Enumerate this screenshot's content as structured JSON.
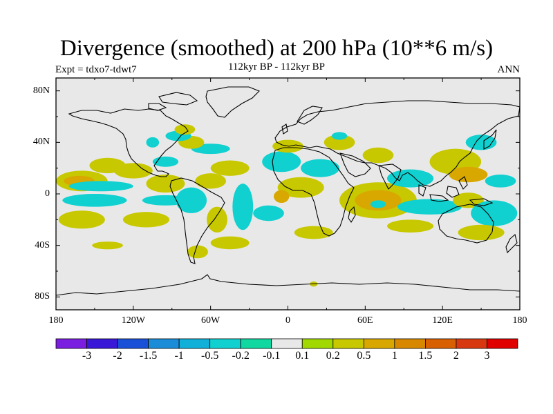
{
  "title": "Divergence (smoothed) at 200 hPa (10**6 m/s)",
  "left_subtitle": "Expt = tdxo7-tdwt7",
  "center_subtitle": "112kyr BP - 112kyr BP",
  "right_subtitle": "ANN",
  "chart_data": {
    "type": "heatmap",
    "projection": "cylindrical-equidistant",
    "lon_range": [
      -180,
      180
    ],
    "lat_range": [
      -90,
      90
    ],
    "x_tick_labels": [
      {
        "lon": -180,
        "label": "180"
      },
      {
        "lon": -120,
        "label": "120W"
      },
      {
        "lon": -60,
        "label": "60W"
      },
      {
        "lon": 0,
        "label": "0"
      },
      {
        "lon": 60,
        "label": "60E"
      },
      {
        "lon": 120,
        "label": "120E"
      },
      {
        "lon": 180,
        "label": "180"
      }
    ],
    "y_tick_labels": [
      {
        "lat": 80,
        "label": "80N"
      },
      {
        "lat": 40,
        "label": "40N"
      },
      {
        "lat": 0,
        "label": "0"
      },
      {
        "lat": -40,
        "label": "40S"
      },
      {
        "lat": -80,
        "label": "80S"
      }
    ],
    "background_color": "#e8e8e8",
    "colorbar": {
      "colors": [
        "#7a1fe0",
        "#3a18d8",
        "#1a50d8",
        "#1a8cd8",
        "#10b0d8",
        "#10d0d0",
        "#10d8a0",
        "#e8e8e8",
        "#a0d800",
        "#c8c800",
        "#d8a800",
        "#d88800",
        "#d86000",
        "#d83810",
        "#e00000"
      ],
      "labels": [
        "-3",
        "-2",
        "-1.5",
        "-1",
        "-0.5",
        "-0.2",
        "-0.1",
        "0.1",
        "0.2",
        "0.5",
        "1",
        "1.5",
        "2",
        "3"
      ]
    },
    "contour_regions": [
      {
        "level": 0.2,
        "lon": -160,
        "lat": 10,
        "rx": 20,
        "ry": 8
      },
      {
        "level": 0.5,
        "lon": -162,
        "lat": 10,
        "rx": 12,
        "ry": 4
      },
      {
        "level": 0.2,
        "lon": -140,
        "lat": 22,
        "rx": 14,
        "ry": 6
      },
      {
        "level": -0.2,
        "lon": -145,
        "lat": 6,
        "rx": 25,
        "ry": 4
      },
      {
        "level": -0.2,
        "lon": -150,
        "lat": -5,
        "rx": 25,
        "ry": 5
      },
      {
        "level": 0.2,
        "lon": -160,
        "lat": -20,
        "rx": 18,
        "ry": 7
      },
      {
        "level": 0.2,
        "lon": -120,
        "lat": 18,
        "rx": 15,
        "ry": 6
      },
      {
        "level": 0.2,
        "lon": -95,
        "lat": 8,
        "rx": 15,
        "ry": 7
      },
      {
        "level": -0.2,
        "lon": -95,
        "lat": 25,
        "rx": 10,
        "ry": 4
      },
      {
        "level": -0.2,
        "lon": -95,
        "lat": -5,
        "rx": 18,
        "ry": 4
      },
      {
        "level": 0.2,
        "lon": -110,
        "lat": -20,
        "rx": 18,
        "ry": 6
      },
      {
        "level": -0.2,
        "lon": -75,
        "lat": -5,
        "rx": 12,
        "ry": 10
      },
      {
        "level": 0.2,
        "lon": -60,
        "lat": 10,
        "rx": 12,
        "ry": 6
      },
      {
        "level": 0.2,
        "lon": -45,
        "lat": 20,
        "rx": 15,
        "ry": 6
      },
      {
        "level": -0.2,
        "lon": -60,
        "lat": 35,
        "rx": 15,
        "ry": 4
      },
      {
        "level": 0.2,
        "lon": -75,
        "lat": 40,
        "rx": 10,
        "ry": 5
      },
      {
        "level": -0.2,
        "lon": -35,
        "lat": -10,
        "rx": 8,
        "ry": 18
      },
      {
        "level": 0.2,
        "lon": -55,
        "lat": -20,
        "rx": 8,
        "ry": 10
      },
      {
        "level": 0.2,
        "lon": -45,
        "lat": -38,
        "rx": 15,
        "ry": 5
      },
      {
        "level": 0.2,
        "lon": -70,
        "lat": -45,
        "rx": 8,
        "ry": 5
      },
      {
        "level": 0.2,
        "lon": -140,
        "lat": -40,
        "rx": 12,
        "ry": 3
      },
      {
        "level": -0.2,
        "lon": -85,
        "lat": 45,
        "rx": 10,
        "ry": 4
      },
      {
        "level": -0.2,
        "lon": -105,
        "lat": 40,
        "rx": 5,
        "ry": 4
      },
      {
        "level": 0.2,
        "lon": -80,
        "lat": 50,
        "rx": 8,
        "ry": 4
      },
      {
        "level": -0.2,
        "lon": -5,
        "lat": 25,
        "rx": 15,
        "ry": 8
      },
      {
        "level": 0.2,
        "lon": 0,
        "lat": 37,
        "rx": 12,
        "ry": 5
      },
      {
        "level": -0.2,
        "lon": 25,
        "lat": 20,
        "rx": 15,
        "ry": 7
      },
      {
        "level": 0.2,
        "lon": 10,
        "lat": 5,
        "rx": 18,
        "ry": 8
      },
      {
        "level": 0.5,
        "lon": -5,
        "lat": -2,
        "rx": 6,
        "ry": 5
      },
      {
        "level": -0.2,
        "lon": -15,
        "lat": -15,
        "rx": 12,
        "ry": 6
      },
      {
        "level": 0.2,
        "lon": 20,
        "lat": -30,
        "rx": 15,
        "ry": 5
      },
      {
        "level": 0.2,
        "lon": 40,
        "lat": 40,
        "rx": 12,
        "ry": 6
      },
      {
        "level": 0.2,
        "lon": 70,
        "lat": 30,
        "rx": 12,
        "ry": 6
      },
      {
        "level": 0.2,
        "lon": 70,
        "lat": -5,
        "rx": 30,
        "ry": 14
      },
      {
        "level": 0.5,
        "lon": 70,
        "lat": -5,
        "rx": 18,
        "ry": 8
      },
      {
        "level": -0.2,
        "lon": 70,
        "lat": -8,
        "rx": 6,
        "ry": 3
      },
      {
        "level": -0.2,
        "lon": 95,
        "lat": 12,
        "rx": 18,
        "ry": 7
      },
      {
        "level": -0.2,
        "lon": 110,
        "lat": -10,
        "rx": 25,
        "ry": 6
      },
      {
        "level": 0.2,
        "lon": 95,
        "lat": -25,
        "rx": 18,
        "ry": 5
      },
      {
        "level": 0.2,
        "lon": 130,
        "lat": 25,
        "rx": 20,
        "ry": 10
      },
      {
        "level": 0.5,
        "lon": 140,
        "lat": 15,
        "rx": 15,
        "ry": 6
      },
      {
        "level": -0.2,
        "lon": 150,
        "lat": 40,
        "rx": 12,
        "ry": 6
      },
      {
        "level": 0.2,
        "lon": 140,
        "lat": -5,
        "rx": 12,
        "ry": 6
      },
      {
        "level": -0.2,
        "lon": 160,
        "lat": -15,
        "rx": 18,
        "ry": 10
      },
      {
        "level": 0.2,
        "lon": 150,
        "lat": -30,
        "rx": 18,
        "ry": 6
      },
      {
        "level": -0.2,
        "lon": 165,
        "lat": 10,
        "rx": 12,
        "ry": 5
      },
      {
        "level": 0.2,
        "lon": 20,
        "lat": -70,
        "rx": 3,
        "ry": 2
      },
      {
        "level": -0.2,
        "lon": 40,
        "lat": 45,
        "rx": 6,
        "ry": 3
      }
    ]
  }
}
